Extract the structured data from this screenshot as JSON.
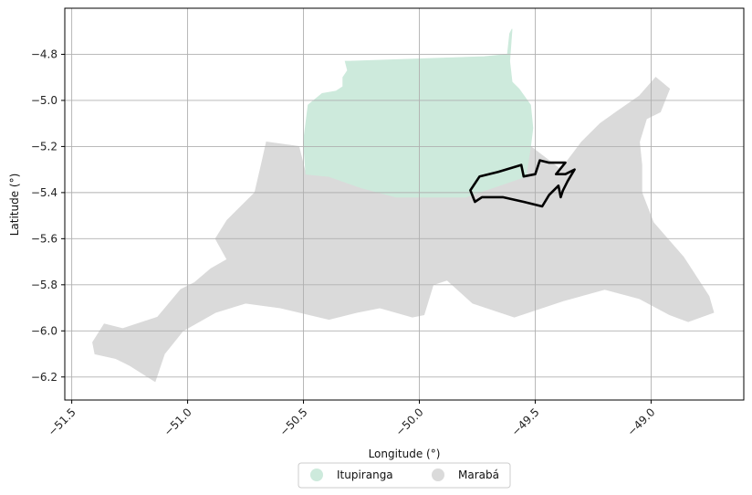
{
  "chart_data": {
    "type": "map",
    "xlabel": "Longitude (°)",
    "ylabel": "Latitude (°)",
    "xlim": [
      -51.53,
      -48.6
    ],
    "ylim": [
      -6.3,
      -4.6
    ],
    "x_ticks": [
      -51.5,
      -51.0,
      -50.5,
      -50.0,
      -49.5,
      -49.0
    ],
    "x_tick_labels": [
      "−51.5",
      "−51.0",
      "−50.5",
      "−50.0",
      "−49.5",
      "−49.0"
    ],
    "y_ticks": [
      -4.8,
      -5.0,
      -5.2,
      -5.4,
      -5.6,
      -5.8,
      -6.0,
      -6.2
    ],
    "y_tick_labels": [
      "−4.8",
      "−5.0",
      "−5.2",
      "−5.4",
      "−5.6",
      "−5.8",
      "−6.0",
      "−6.2"
    ],
    "grid": true,
    "legend_position": "bottom-center",
    "regions": [
      {
        "name": "Itupiranga",
        "color": "#cdeadc",
        "outline": [
          [
            -50.49,
            -5.32
          ],
          [
            -50.5,
            -5.18
          ],
          [
            -50.48,
            -5.02
          ],
          [
            -50.42,
            -4.97
          ],
          [
            -50.36,
            -4.96
          ],
          [
            -50.33,
            -4.94
          ],
          [
            -50.33,
            -4.9
          ],
          [
            -50.31,
            -4.87
          ],
          [
            -50.32,
            -4.83
          ],
          [
            -50.3,
            -4.83
          ],
          [
            -49.72,
            -4.81
          ],
          [
            -49.62,
            -4.8
          ],
          [
            -49.61,
            -4.71
          ],
          [
            -49.6,
            -4.69
          ],
          [
            -49.61,
            -4.83
          ],
          [
            -49.6,
            -4.92
          ],
          [
            -49.57,
            -4.95
          ],
          [
            -49.52,
            -5.02
          ],
          [
            -49.51,
            -5.12
          ],
          [
            -49.52,
            -5.2
          ],
          [
            -49.54,
            -5.33
          ],
          [
            -49.8,
            -5.42
          ],
          [
            -49.95,
            -5.42
          ],
          [
            -50.1,
            -5.42
          ],
          [
            -50.25,
            -5.38
          ],
          [
            -50.39,
            -5.33
          ]
        ]
      },
      {
        "name": "Marabá",
        "color": "#dadada",
        "outline": [
          [
            -51.41,
            -6.05
          ],
          [
            -51.36,
            -5.97
          ],
          [
            -51.28,
            -5.99
          ],
          [
            -51.22,
            -5.97
          ],
          [
            -51.13,
            -5.94
          ],
          [
            -51.03,
            -5.82
          ],
          [
            -50.97,
            -5.79
          ],
          [
            -50.9,
            -5.73
          ],
          [
            -50.83,
            -5.69
          ],
          [
            -50.88,
            -5.6
          ],
          [
            -50.83,
            -5.52
          ],
          [
            -50.71,
            -5.4
          ],
          [
            -50.68,
            -5.27
          ],
          [
            -50.66,
            -5.18
          ],
          [
            -50.52,
            -5.2
          ],
          [
            -50.49,
            -5.32
          ],
          [
            -50.39,
            -5.33
          ],
          [
            -50.25,
            -5.38
          ],
          [
            -50.1,
            -5.42
          ],
          [
            -49.95,
            -5.42
          ],
          [
            -49.8,
            -5.42
          ],
          [
            -49.54,
            -5.33
          ],
          [
            -49.52,
            -5.2
          ],
          [
            -49.39,
            -5.3
          ],
          [
            -49.3,
            -5.18
          ],
          [
            -49.22,
            -5.1
          ],
          [
            -49.15,
            -5.05
          ],
          [
            -49.05,
            -4.98
          ],
          [
            -48.98,
            -4.9
          ],
          [
            -48.92,
            -4.95
          ],
          [
            -48.96,
            -5.05
          ],
          [
            -49.02,
            -5.08
          ],
          [
            -49.05,
            -5.18
          ],
          [
            -49.04,
            -5.28
          ],
          [
            -49.04,
            -5.4
          ],
          [
            -48.99,
            -5.53
          ],
          [
            -48.86,
            -5.68
          ],
          [
            -48.75,
            -5.85
          ],
          [
            -48.73,
            -5.92
          ],
          [
            -48.84,
            -5.96
          ],
          [
            -48.92,
            -5.93
          ],
          [
            -49.05,
            -5.86
          ],
          [
            -49.2,
            -5.82
          ],
          [
            -49.38,
            -5.87
          ],
          [
            -49.59,
            -5.94
          ],
          [
            -49.77,
            -5.88
          ],
          [
            -49.88,
            -5.78
          ],
          [
            -49.94,
            -5.8
          ],
          [
            -49.98,
            -5.93
          ],
          [
            -50.03,
            -5.94
          ],
          [
            -50.17,
            -5.9
          ],
          [
            -50.27,
            -5.92
          ],
          [
            -50.39,
            -5.95
          ],
          [
            -50.6,
            -5.9
          ],
          [
            -50.75,
            -5.88
          ],
          [
            -50.88,
            -5.92
          ],
          [
            -51.02,
            -6.0
          ],
          [
            -51.1,
            -6.1
          ],
          [
            -51.14,
            -6.22
          ],
          [
            -51.25,
            -6.15
          ],
          [
            -51.31,
            -6.12
          ],
          [
            -51.4,
            -6.1
          ]
        ]
      }
    ],
    "highlight_outline": {
      "color": "#000000",
      "outline": [
        [
          -49.78,
          -5.39
        ],
        [
          -49.74,
          -5.33
        ],
        [
          -49.66,
          -5.31
        ],
        [
          -49.56,
          -5.28
        ],
        [
          -49.55,
          -5.33
        ],
        [
          -49.5,
          -5.32
        ],
        [
          -49.48,
          -5.26
        ],
        [
          -49.44,
          -5.27
        ],
        [
          -49.37,
          -5.27
        ],
        [
          -49.41,
          -5.32
        ],
        [
          -49.37,
          -5.32
        ],
        [
          -49.33,
          -5.3
        ],
        [
          -49.36,
          -5.35
        ],
        [
          -49.38,
          -5.39
        ],
        [
          -49.39,
          -5.42
        ],
        [
          -49.4,
          -5.37
        ],
        [
          -49.44,
          -5.41
        ],
        [
          -49.47,
          -5.46
        ],
        [
          -49.55,
          -5.44
        ],
        [
          -49.64,
          -5.42
        ],
        [
          -49.73,
          -5.42
        ],
        [
          -49.76,
          -5.44
        ]
      ]
    }
  },
  "legend": {
    "items": [
      {
        "label": "Itupiranga",
        "color": "#cdeadc"
      },
      {
        "label": "Marabá",
        "color": "#dadada"
      }
    ]
  }
}
